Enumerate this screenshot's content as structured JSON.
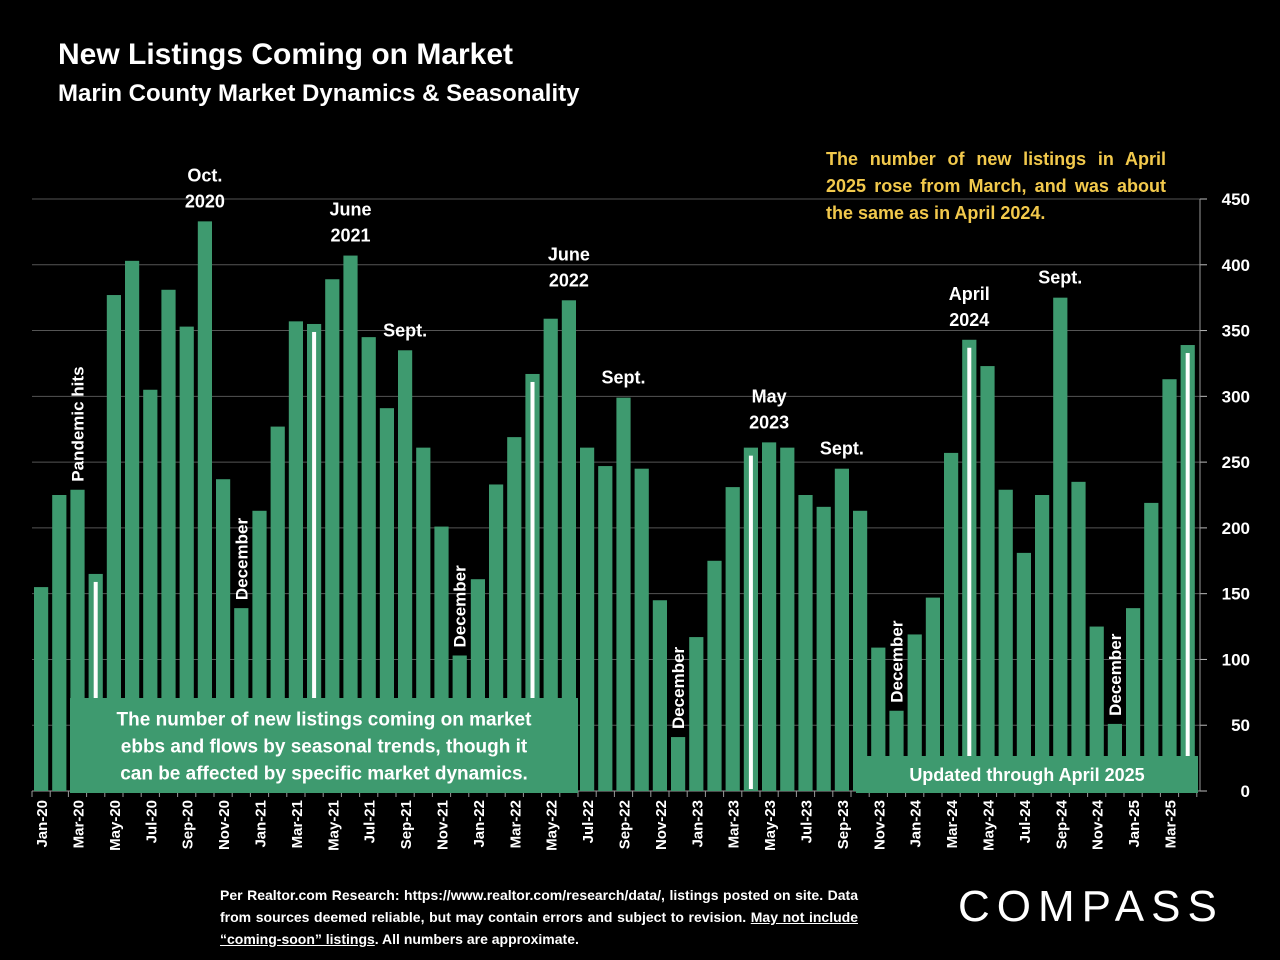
{
  "title": "New Listings Coming on Market",
  "subtitle": "Marin County Market Dynamics & Seasonality",
  "note": "The number of new listings in April 2025 rose from March, and was about the same as in April 2024.",
  "footer": {
    "part1": "Per Realtor.com Research:  https://www.realtor.com/research/data/, listings posted on site. Data from sources deemed reliable, but may contain errors and subject to revision. ",
    "underlined": "May not include “coming-soon” listings",
    "part2": ". All numbers are approximate."
  },
  "logo": {
    "text": "COMPASS",
    "before": "C",
    "o": "O",
    "after": "MPASS"
  },
  "colors": {
    "bar": "#3e9a6f",
    "highlight": "#ffffff",
    "note": "#f2c94c",
    "grid": "#555555"
  },
  "chart_data": {
    "type": "bar",
    "title": "New Listings Coming on Market",
    "ylim": [
      0,
      450
    ],
    "yticks": [
      0,
      50,
      100,
      150,
      200,
      250,
      300,
      350,
      400,
      450
    ],
    "y_axis_side": "right",
    "grid": true,
    "categories": [
      "Jan-20",
      "Feb-20",
      "Mar-20",
      "Apr-20",
      "May-20",
      "Jun-20",
      "Jul-20",
      "Aug-20",
      "Sep-20",
      "Oct-20",
      "Nov-20",
      "Dec-20",
      "Jan-21",
      "Feb-21",
      "Mar-21",
      "Apr-21",
      "May-21",
      "Jun-21",
      "Jul-21",
      "Aug-21",
      "Sep-21",
      "Oct-21",
      "Nov-21",
      "Dec-21",
      "Jan-22",
      "Feb-22",
      "Mar-22",
      "Apr-22",
      "May-22",
      "Jun-22",
      "Jul-22",
      "Aug-22",
      "Sep-22",
      "Oct-22",
      "Nov-22",
      "Dec-22",
      "Jan-23",
      "Feb-23",
      "Mar-23",
      "Apr-23",
      "May-23",
      "Jun-23",
      "Jul-23",
      "Aug-23",
      "Sep-23",
      "Oct-23",
      "Nov-23",
      "Dec-23",
      "Jan-24",
      "Feb-24",
      "Mar-24",
      "Apr-24",
      "May-24",
      "Jun-24",
      "Jul-24",
      "Aug-24",
      "Sep-24",
      "Oct-24",
      "Nov-24",
      "Dec-24",
      "Jan-25",
      "Feb-25",
      "Mar-25",
      "Apr-25"
    ],
    "values": [
      155,
      225,
      229,
      165,
      377,
      403,
      305,
      381,
      353,
      433,
      237,
      139,
      213,
      277,
      357,
      355,
      389,
      407,
      345,
      291,
      335,
      261,
      201,
      103,
      161,
      233,
      269,
      317,
      359,
      373,
      261,
      247,
      299,
      245,
      145,
      41,
      117,
      175,
      231,
      261,
      265,
      261,
      225,
      216,
      245,
      213,
      109,
      61,
      119,
      147,
      257,
      343,
      323,
      229,
      181,
      225,
      375,
      235,
      125,
      51,
      139,
      219,
      313,
      339
    ],
    "x_tick_labels": [
      "Jan-20",
      "Mar-20",
      "May-20",
      "Jul-20",
      "Sep-20",
      "Nov-20",
      "Jan-21",
      "Mar-21",
      "May-21",
      "Jul-21",
      "Sep-21",
      "Nov-21",
      "Jan-22",
      "Mar-22",
      "May-22",
      "Jul-22",
      "Sep-22",
      "Nov-22",
      "Jan-23",
      "Mar-23",
      "May-23",
      "Jul-23",
      "Sep-23",
      "Nov-23",
      "Jan-24",
      "Mar-24",
      "May-24",
      "Jul-24",
      "Sep-24",
      "Nov-24",
      "Jan-25",
      "Mar-25"
    ],
    "highlight_indices": [
      3,
      15,
      27,
      39,
      51,
      63
    ],
    "annotations": [
      {
        "index": 9,
        "lines": [
          "Oct.",
          "2020"
        ]
      },
      {
        "index": 17,
        "lines": [
          "June",
          "2021"
        ]
      },
      {
        "index": 20,
        "lines": [
          "Sept."
        ]
      },
      {
        "index": 29,
        "lines": [
          "June",
          "2022"
        ]
      },
      {
        "index": 32,
        "lines": [
          "Sept."
        ]
      },
      {
        "index": 40,
        "lines": [
          "May",
          "2023"
        ]
      },
      {
        "index": 44,
        "lines": [
          "Sept."
        ]
      },
      {
        "index": 51,
        "lines": [
          "April",
          "2024"
        ]
      },
      {
        "index": 56,
        "lines": [
          "Sept."
        ]
      }
    ],
    "vertical_annotations": [
      {
        "index": 2,
        "text": "Pandemic hits"
      },
      {
        "index": 11,
        "text": "December"
      },
      {
        "index": 23,
        "text": "December"
      },
      {
        "index": 35,
        "text": "December"
      },
      {
        "index": 47,
        "text": "December"
      },
      {
        "index": 59,
        "text": "December"
      }
    ],
    "boxes": [
      {
        "text_lines": [
          "The number of new listings coming on market",
          "ebbs and flows by seasonal trends, though it",
          "can be affected by specific market dynamics."
        ]
      },
      {
        "text_lines": [
          "Updated through April 2025"
        ]
      }
    ]
  }
}
